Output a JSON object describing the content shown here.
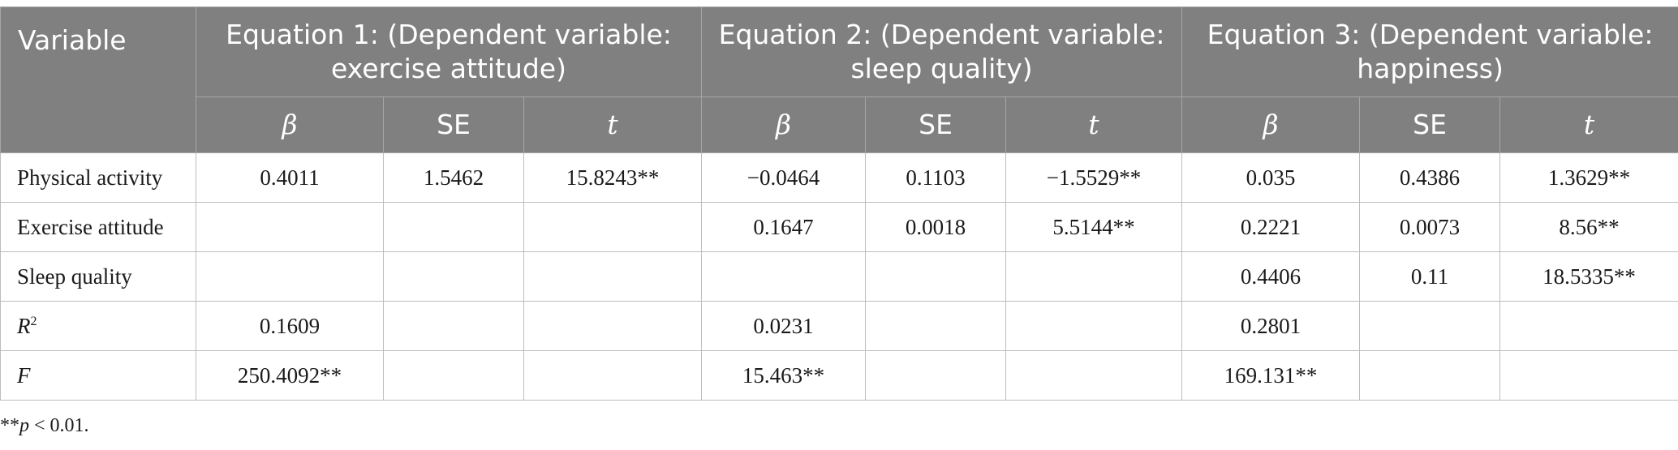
{
  "table": {
    "headers": {
      "variable": "Variable",
      "eq1": "Equation 1: (Dependent variable: exercise attitude)",
      "eq2": "Equation 2: (Dependent variable: sleep quality)",
      "eq3": "Equation 3: (Dependent variable: happiness)",
      "beta": "β",
      "se": "SE",
      "t": "t"
    },
    "rows": [
      {
        "label": "Physical activity",
        "cells": [
          "0.4011",
          "1.5462",
          "15.8243**",
          "−0.0464",
          "0.1103",
          "−1.5529**",
          "0.035",
          "0.4386",
          "1.3629**"
        ]
      },
      {
        "label": "Exercise attitude",
        "cells": [
          "",
          "",
          "",
          "0.1647",
          "0.0018",
          "5.5144**",
          "0.2221",
          "0.0073",
          "8.56**"
        ]
      },
      {
        "label": "Sleep quality",
        "cells": [
          "",
          "",
          "",
          "",
          "",
          "",
          "0.4406",
          "0.11",
          "18.5335**"
        ]
      },
      {
        "label": "R",
        "label_sup": "2",
        "cells": [
          "0.1609",
          "",
          "",
          "0.0231",
          "",
          "",
          "0.2801",
          "",
          ""
        ]
      },
      {
        "label": "F",
        "cells": [
          "250.4092**",
          "",
          "",
          "15.463**",
          "",
          "",
          "169.131**",
          "",
          ""
        ]
      }
    ]
  },
  "note": {
    "prefix": "**",
    "symbol": "p",
    "text": " < 0.01."
  },
  "colors": {
    "header_bg": "#808080",
    "header_text": "#ffffff",
    "border": "#bdbdbd"
  }
}
